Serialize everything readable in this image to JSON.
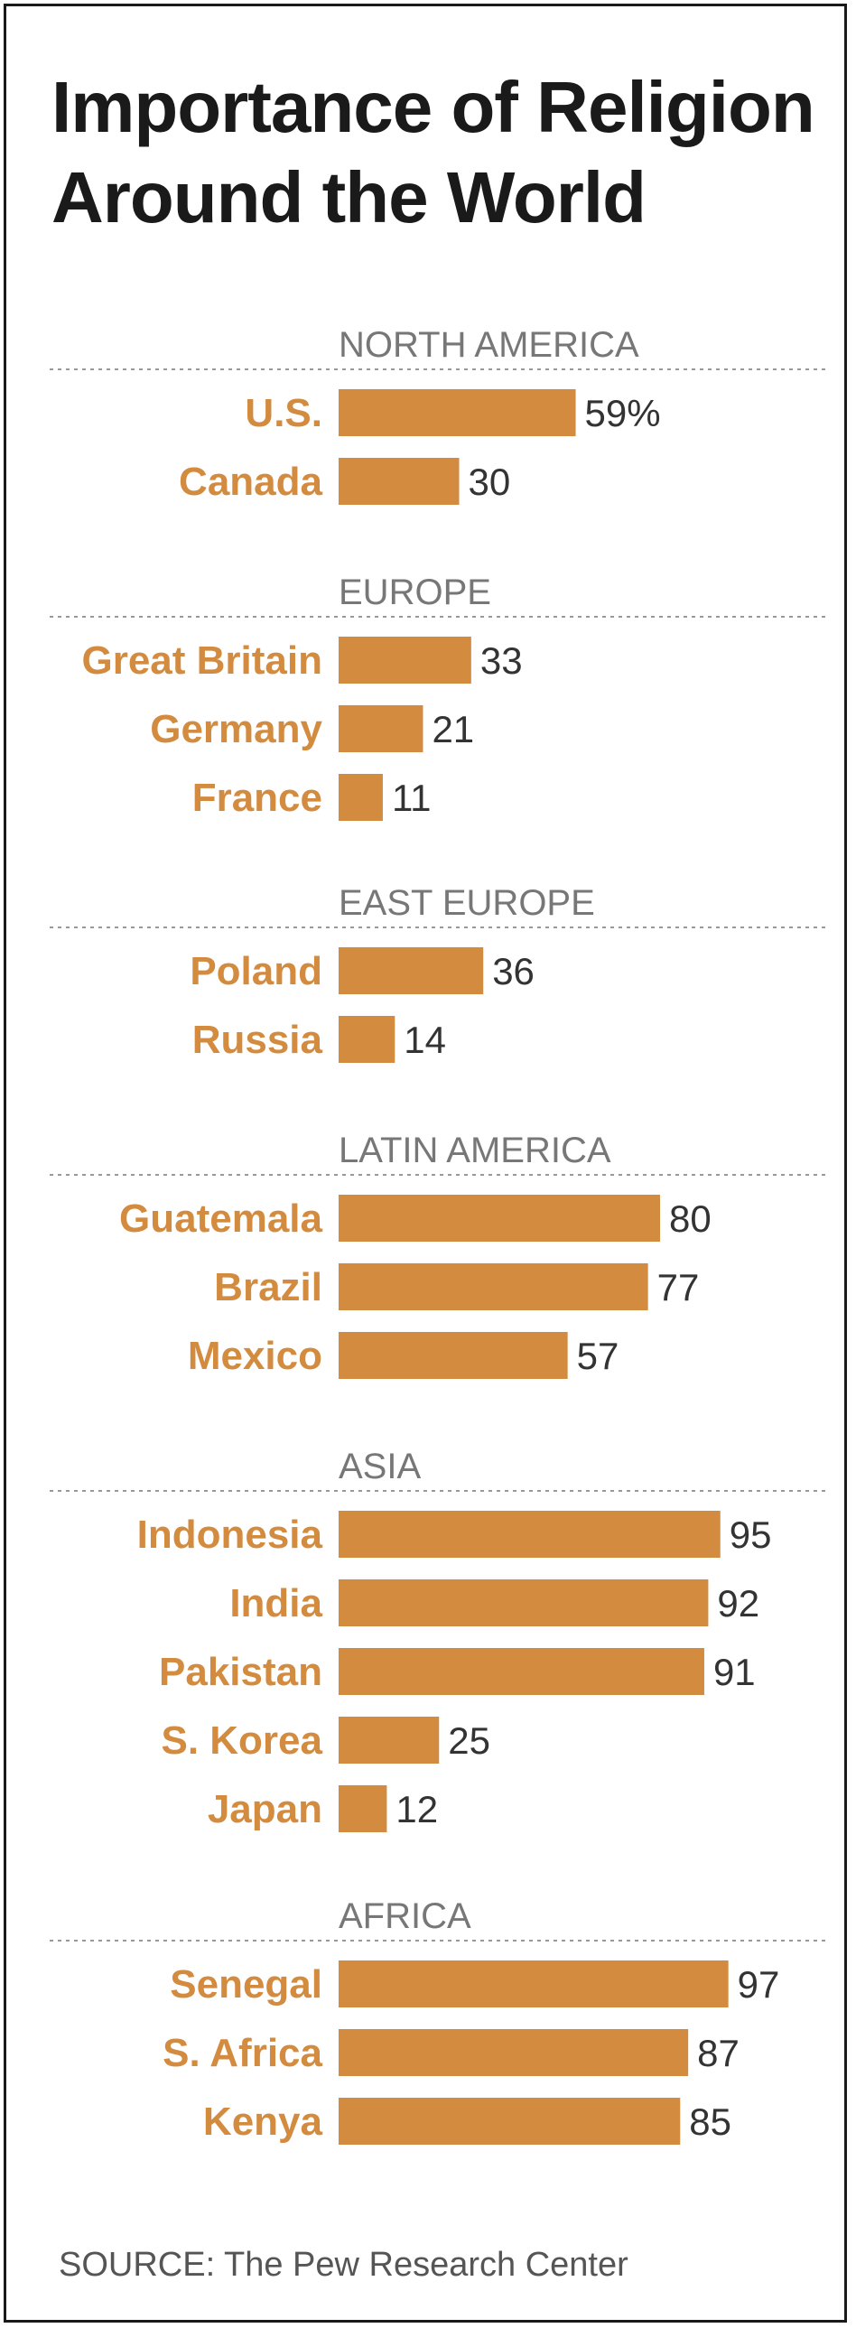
{
  "title_line1": "Importance of Religion",
  "title_line2": "Around the World",
  "source": "SOURCE: The Pew Research Center",
  "colors": {
    "bar": "#d38b3f",
    "country_label": "#d38b3f",
    "region_label": "#777777",
    "value_label": "#333333",
    "divider": "#999999"
  },
  "chart_data": {
    "type": "bar",
    "orientation": "horizontal",
    "unit": "%",
    "xlim": [
      0,
      100
    ],
    "grid": false,
    "groups": [
      {
        "region": "NORTH AMERICA",
        "items": [
          {
            "label": "U.S.",
            "value": 59,
            "value_label": "59%"
          },
          {
            "label": "Canada",
            "value": 30,
            "value_label": "30"
          }
        ]
      },
      {
        "region": "EUROPE",
        "items": [
          {
            "label": "Great Britain",
            "value": 33,
            "value_label": "33"
          },
          {
            "label": "Germany",
            "value": 21,
            "value_label": "21"
          },
          {
            "label": "France",
            "value": 11,
            "value_label": "11"
          }
        ]
      },
      {
        "region": "EAST EUROPE",
        "items": [
          {
            "label": "Poland",
            "value": 36,
            "value_label": "36"
          },
          {
            "label": "Russia",
            "value": 14,
            "value_label": "14"
          }
        ]
      },
      {
        "region": "LATIN AMERICA",
        "items": [
          {
            "label": "Guatemala",
            "value": 80,
            "value_label": "80"
          },
          {
            "label": "Brazil",
            "value": 77,
            "value_label": "77"
          },
          {
            "label": "Mexico",
            "value": 57,
            "value_label": "57"
          }
        ]
      },
      {
        "region": "ASIA",
        "items": [
          {
            "label": "Indonesia",
            "value": 95,
            "value_label": "95"
          },
          {
            "label": "India",
            "value": 92,
            "value_label": "92"
          },
          {
            "label": "Pakistan",
            "value": 91,
            "value_label": "91"
          },
          {
            "label": "S. Korea",
            "value": 25,
            "value_label": "25"
          },
          {
            "label": "Japan",
            "value": 12,
            "value_label": "12"
          }
        ]
      },
      {
        "region": "AFRICA",
        "items": [
          {
            "label": "Senegal",
            "value": 97,
            "value_label": "97"
          },
          {
            "label": "S. Africa",
            "value": 87,
            "value_label": "87"
          },
          {
            "label": "Kenya",
            "value": 85,
            "value_label": "85"
          }
        ]
      }
    ]
  }
}
